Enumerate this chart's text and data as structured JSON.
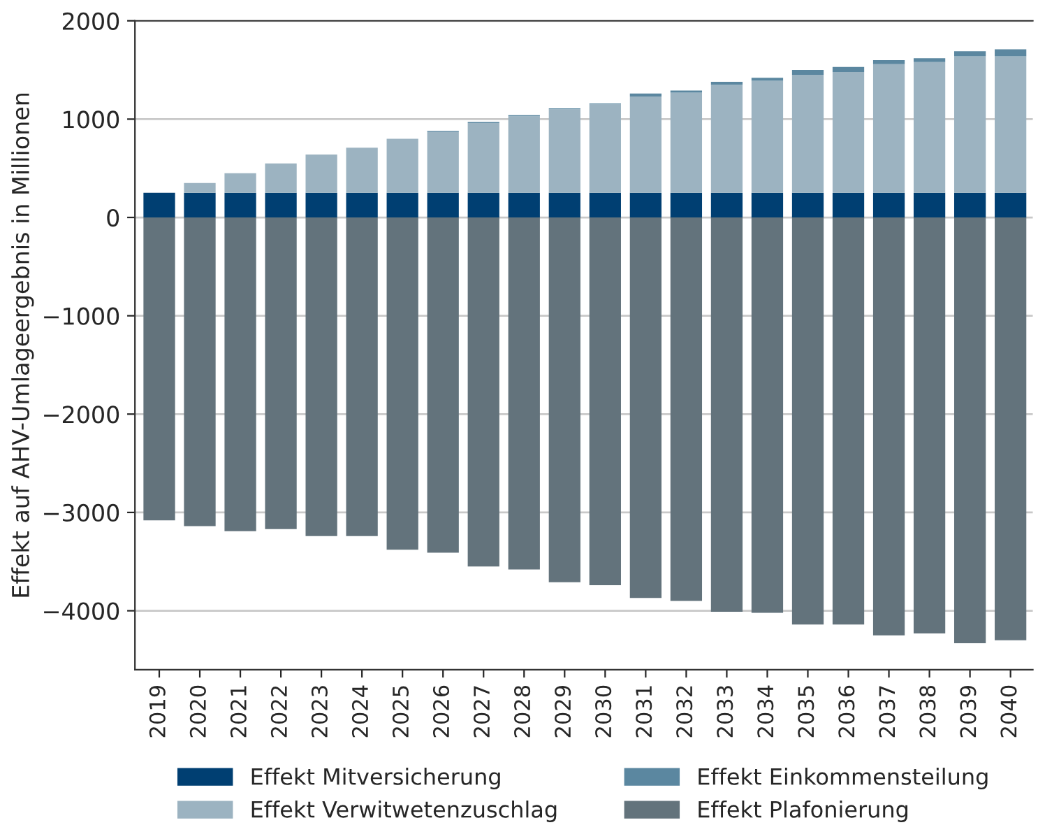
{
  "chart_data": {
    "type": "bar",
    "stacked": true,
    "ylabel": "Effekt auf AHV-Umlageergebnis in Millionen",
    "categories": [
      "2019",
      "2020",
      "2021",
      "2022",
      "2023",
      "2024",
      "2025",
      "2026",
      "2027",
      "2028",
      "2029",
      "2030",
      "2031",
      "2032",
      "2033",
      "2034",
      "2035",
      "2036",
      "2037",
      "2038",
      "2039",
      "2040"
    ],
    "series": [
      {
        "name": "Effekt Mitversicherung",
        "color": "#003f72",
        "values": [
          250,
          250,
          250,
          250,
          250,
          250,
          250,
          250,
          250,
          250,
          250,
          250,
          250,
          250,
          250,
          250,
          250,
          250,
          250,
          250,
          250,
          250
        ]
      },
      {
        "name": "Effekt Verwitwetenzuschlag",
        "color": "#9cb3c1",
        "values": [
          0,
          100,
          200,
          300,
          390,
          460,
          550,
          620,
          710,
          780,
          850,
          900,
          980,
          1020,
          1100,
          1140,
          1200,
          1230,
          1310,
          1330,
          1390,
          1390
        ]
      },
      {
        "name": "Effekt Einkommensteilung",
        "color": "#5b87a0",
        "values": [
          0,
          0,
          0,
          0,
          0,
          0,
          0,
          10,
          10,
          10,
          10,
          10,
          30,
          20,
          30,
          30,
          50,
          50,
          40,
          40,
          50,
          70
        ]
      },
      {
        "name": "Effekt Plafonierung",
        "color": "#63737c",
        "values": [
          -3080,
          -3140,
          -3190,
          -3170,
          -3240,
          -3240,
          -3380,
          -3410,
          -3550,
          -3580,
          -3710,
          -3740,
          -3870,
          -3900,
          -4010,
          -4020,
          -4140,
          -4140,
          -4250,
          -4230,
          -4330,
          -4300
        ]
      }
    ],
    "ylim": [
      -4600,
      2000
    ],
    "yticks": [
      {
        "value": -4000,
        "label": "−4000"
      },
      {
        "value": -3000,
        "label": "−3000"
      },
      {
        "value": -2000,
        "label": "−2000"
      },
      {
        "value": -1000,
        "label": "−1000"
      },
      0,
      1000,
      2000
    ],
    "grid": "y",
    "legend": "bottom"
  }
}
